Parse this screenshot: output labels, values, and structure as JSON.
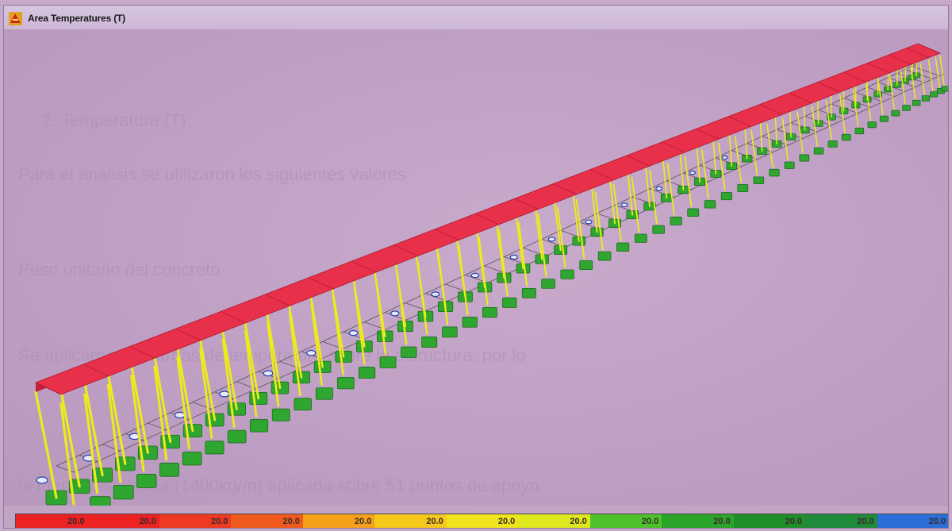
{
  "window": {
    "title": "Area Temperatures (T)",
    "icon": "structure-app-icon"
  },
  "background_text": {
    "line1": "2.  Temperatura (T)",
    "line2": "Para el análisis se utilizaron los siguientes valores",
    "line3": "Peso unitario del concreto",
    "line4": "Se aplicaron las cargas de temperatura sobre la estructura, por lo",
    "line5": "la fuerza distribuida (1400kg/m) aplicada sobre 51 puntos de apoyo"
  },
  "model": {
    "frame_count": 51,
    "colors": {
      "slab": "#e8304a",
      "columns": "#ecec1a",
      "bracing": "#555555",
      "supports": "#2fa62f",
      "load_marker": "#1f3fb0"
    }
  },
  "legend": {
    "segments": [
      {
        "label": "20.0",
        "color": "#ee2222"
      },
      {
        "label": "20.0",
        "color": "#ee2222"
      },
      {
        "label": "20.0",
        "color": "#ef3a22"
      },
      {
        "label": "20.0",
        "color": "#f05a1c"
      },
      {
        "label": "20.0",
        "color": "#f5a21a"
      },
      {
        "label": "20.0",
        "color": "#f6c81c"
      },
      {
        "label": "20.0",
        "color": "#f1e41c"
      },
      {
        "label": "20.0",
        "color": "#dfe81c"
      },
      {
        "label": "20.0",
        "color": "#4ec22a"
      },
      {
        "label": "20.0",
        "color": "#2ba42a"
      },
      {
        "label": "20.0",
        "color": "#1f8f2a"
      },
      {
        "label": "20.0",
        "color": "#1f8a3a"
      },
      {
        "label": "20.0",
        "color": "#2a6fd8"
      }
    ]
  }
}
